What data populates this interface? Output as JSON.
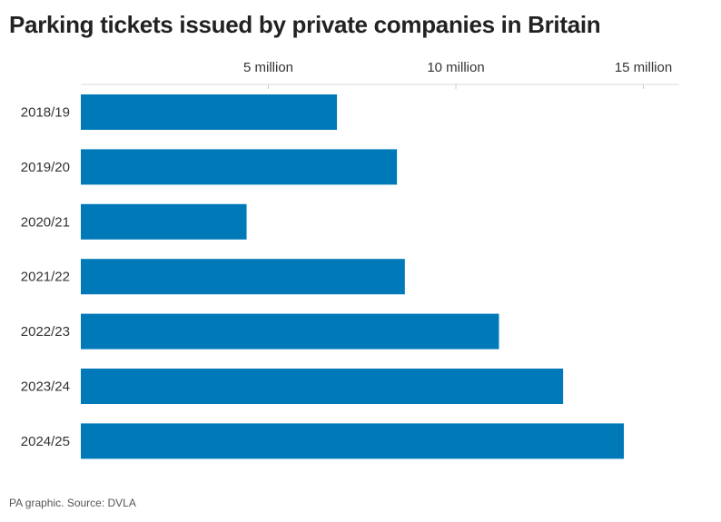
{
  "chart_data": {
    "type": "bar",
    "orientation": "horizontal",
    "title": "Parking tickets issued by private companies in Britain",
    "categories": [
      "2018/19",
      "2019/20",
      "2020/21",
      "2021/22",
      "2022/23",
      "2023/24",
      "2024/25"
    ],
    "values": [
      6830000,
      8430000,
      4420000,
      8640000,
      11150000,
      12860000,
      14480000
    ],
    "x_ticks": [
      {
        "value": 5000000,
        "label": "5 million"
      },
      {
        "value": 10000000,
        "label": "10 million"
      },
      {
        "value": 15000000,
        "label": "15 million"
      }
    ],
    "xlim": [
      0,
      16000000
    ],
    "axis_position": "top",
    "grid": true,
    "legend": "none",
    "bar_color": "#0079b9"
  },
  "footer": {
    "source": "PA graphic. Source: DVLA"
  }
}
